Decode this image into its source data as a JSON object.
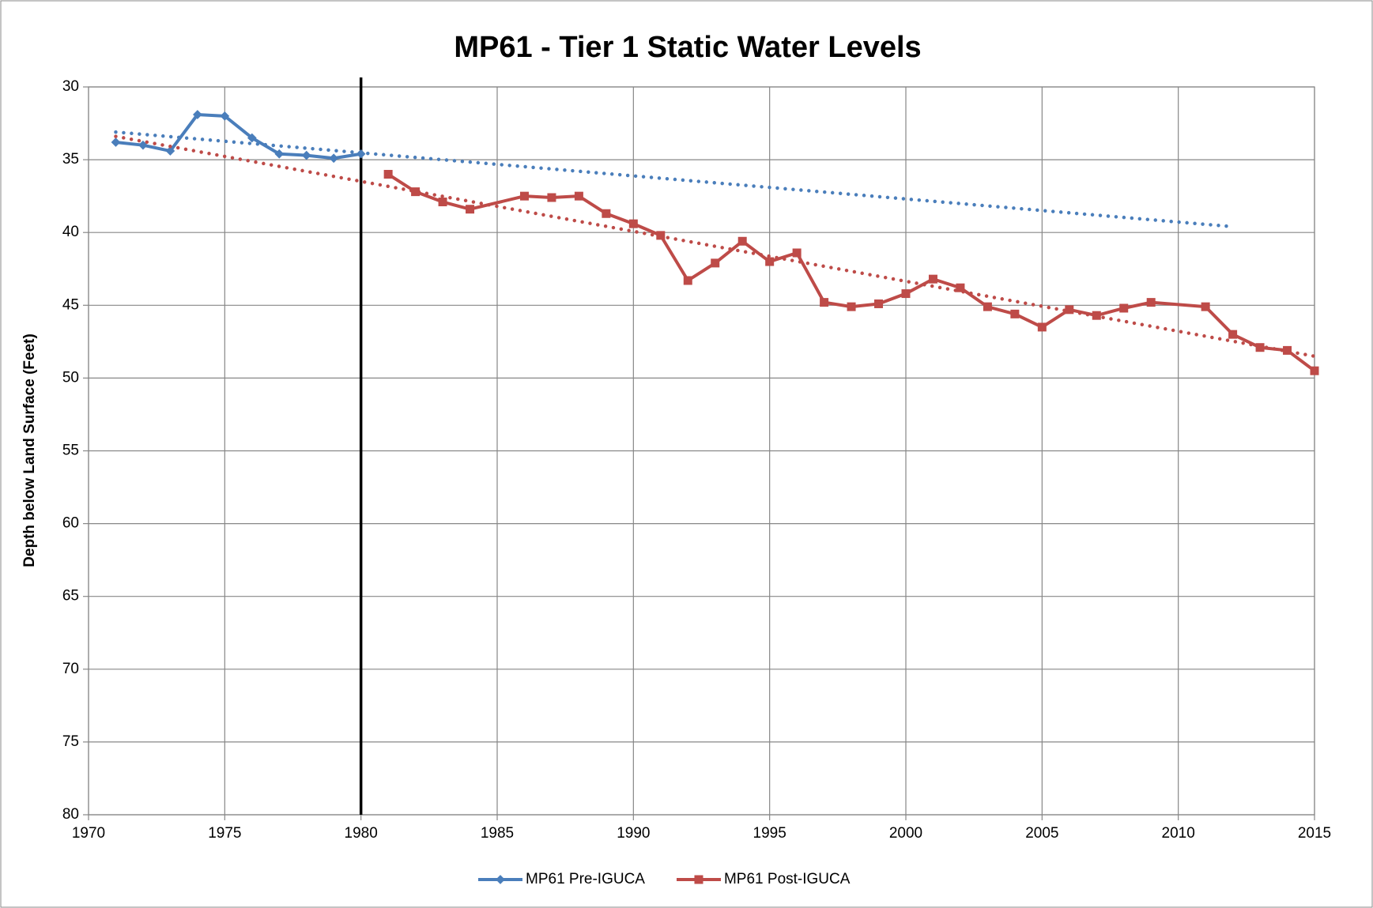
{
  "chart_data": {
    "type": "line",
    "title": "MP61 - Tier 1 Static Water Levels",
    "y_label": "Depth below Land Surface (Feet)",
    "xlim": [
      1970,
      2015
    ],
    "xticks": [
      1970,
      1975,
      1980,
      1985,
      1990,
      1995,
      2000,
      2005,
      2010,
      2015
    ],
    "ylim": [
      30,
      80
    ],
    "yticks": [
      30,
      35,
      40,
      45,
      50,
      55,
      60,
      65,
      70,
      75,
      80
    ],
    "y_inverted": true,
    "grid": true,
    "legend": "bottom",
    "reference_line_x": 1980,
    "series": [
      {
        "name": "MP61 Pre-IGUCA",
        "color": "#4a7ebb",
        "marker": "diamond",
        "x": [
          1971,
          1972,
          1973,
          1974,
          1975,
          1976,
          1977,
          1978,
          1979,
          1980
        ],
        "values": [
          33.8,
          34.0,
          34.4,
          31.9,
          32.0,
          33.5,
          34.6,
          34.7,
          34.9,
          34.6
        ],
        "trendline": {
          "x": [
            1971,
            2012
          ],
          "values": [
            33.1,
            39.6
          ]
        }
      },
      {
        "name": "MP61 Post-IGUCA",
        "color": "#be4b48",
        "marker": "square",
        "x": [
          1981,
          1982,
          1983,
          1984,
          1986,
          1987,
          1988,
          1989,
          1990,
          1991,
          1992,
          1993,
          1994,
          1995,
          1996,
          1997,
          1998,
          1999,
          2000,
          2001,
          2002,
          2003,
          2004,
          2005,
          2006,
          2007,
          2008,
          2009,
          2011,
          2012,
          2013,
          2014,
          2015
        ],
        "values": [
          36.0,
          37.2,
          37.9,
          38.4,
          37.5,
          37.6,
          37.5,
          38.7,
          39.4,
          40.2,
          43.3,
          42.1,
          40.6,
          42.0,
          41.4,
          44.8,
          45.1,
          44.9,
          44.2,
          43.2,
          43.8,
          45.1,
          45.6,
          46.5,
          45.3,
          45.7,
          45.2,
          44.8,
          45.1,
          47.0,
          47.9,
          48.1,
          49.5
        ],
        "trendline": {
          "x": [
            1971,
            2015
          ],
          "values": [
            33.4,
            48.5
          ]
        }
      }
    ]
  }
}
